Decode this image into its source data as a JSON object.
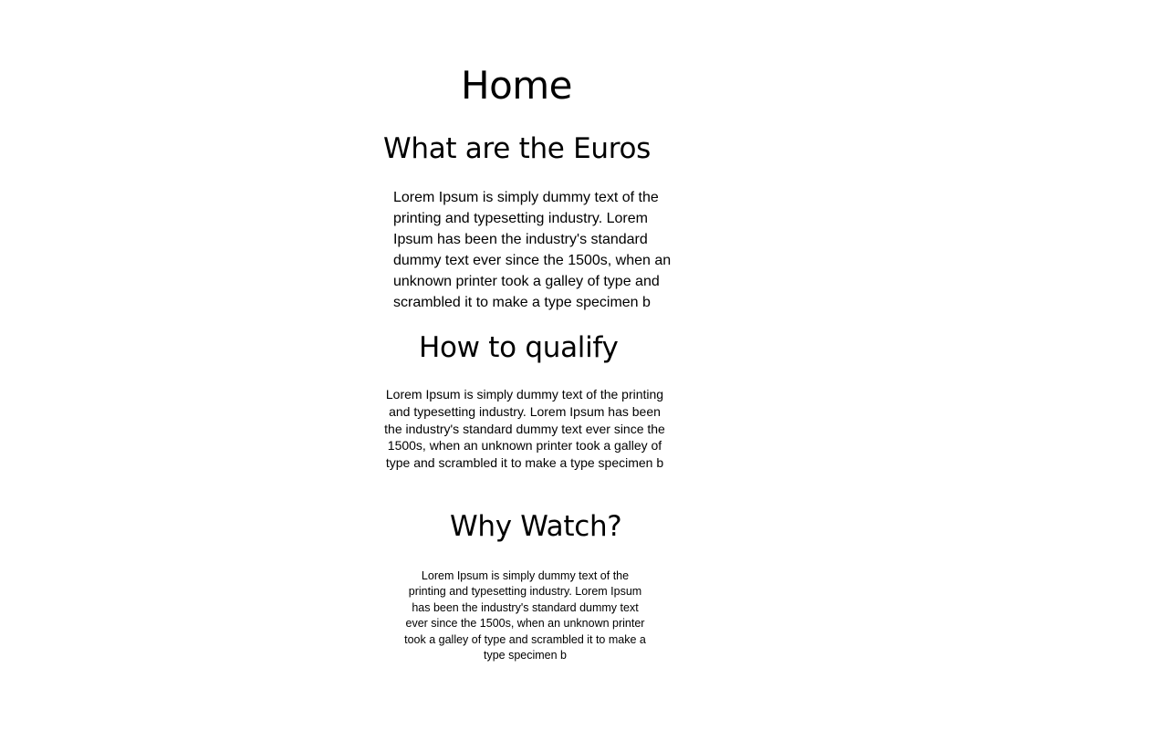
{
  "page": {
    "title": "Home",
    "sections": [
      {
        "heading": "What are the Euros",
        "body": "Lorem Ipsum is simply dummy text of the printing and typesetting industry. Lorem Ipsum has been the industry's standard dummy text ever since the 1500s, when an unknown printer took a galley of type and scrambled it to make a type specimen b"
      },
      {
        "heading": "How to qualify",
        "body": "Lorem Ipsum is simply dummy text of the printing and typesetting industry. Lorem Ipsum has been the industry's standard dummy text ever since the 1500s, when an unknown printer took a galley of type and scrambled it to make a type specimen b"
      },
      {
        "heading": "Why Watch?",
        "body": "Lorem Ipsum is simply dummy text of the printing and typesetting industry. Lorem Ipsum has been the industry's standard dummy text ever since the 1500s, when an unknown printer took a galley of type and scrambled it to make a type specimen b"
      }
    ]
  }
}
